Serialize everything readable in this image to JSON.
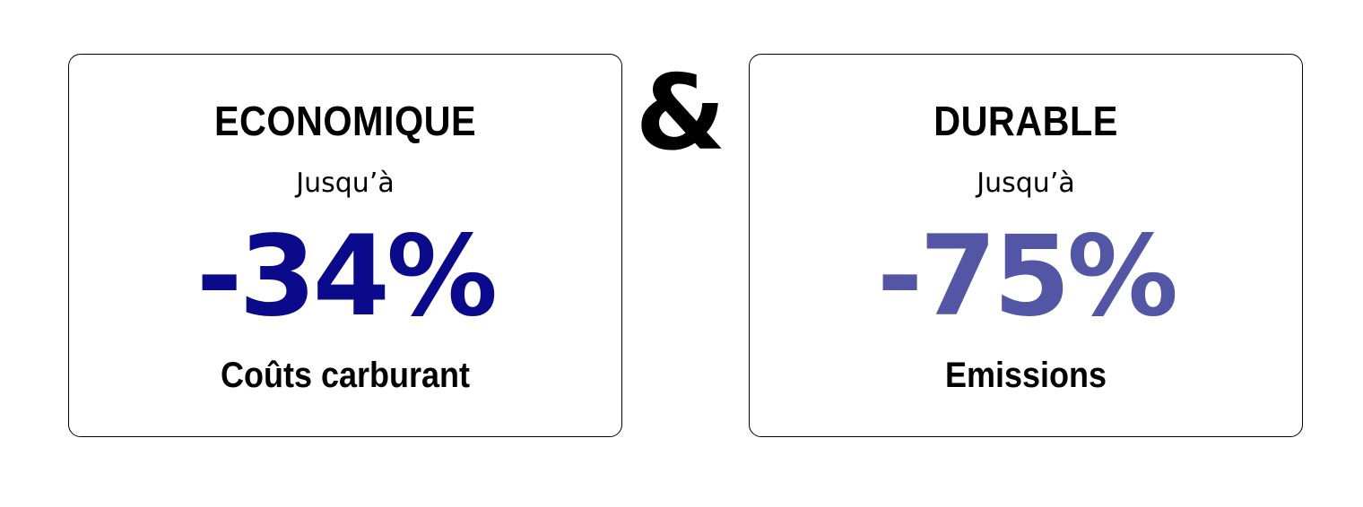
{
  "connector": "&",
  "cards": [
    {
      "heading": "ECONOMIQUE",
      "prefix": "Jusqu’à",
      "value": "-34%",
      "caption": "Coûts carburant",
      "value_color": "#0a0a8a"
    },
    {
      "heading": "DURABLE",
      "prefix": "Jusqu’à",
      "value": "-75%",
      "caption": "Emissions",
      "value_color": "#5355a5"
    }
  ]
}
